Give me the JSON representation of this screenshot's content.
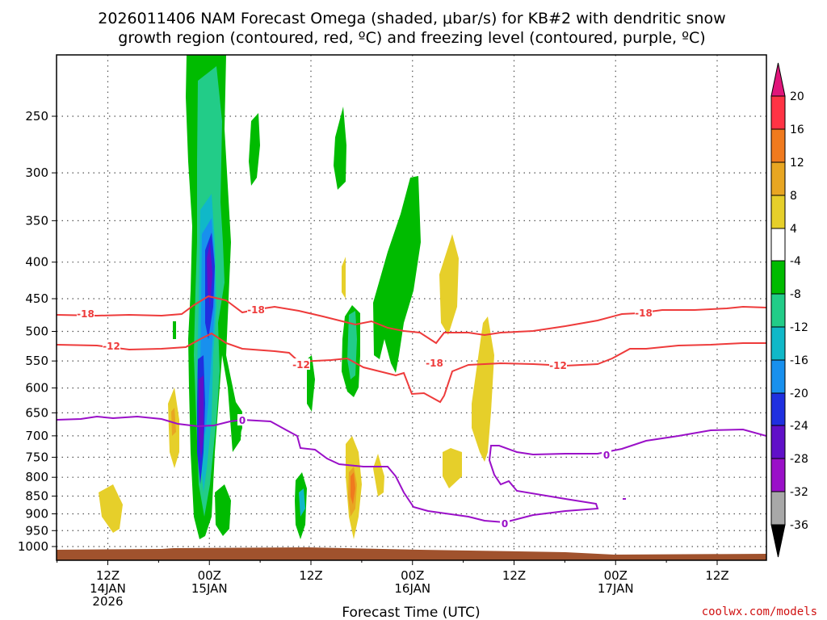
{
  "chart_data": {
    "type": "heatmap",
    "title": "2026011406 NAM Forecast Omega (shaded, μbar/s) for KB#2 with dendritic snow",
    "subtitle": "growth region (contoured, red, ºC) and freezing level (contoured, purple, ºC)",
    "xlabel": "Forecast Time (UTC)",
    "ylabel": "",
    "x_ticks": [
      {
        "t": 12,
        "line1": "12Z",
        "line2": "14JAN",
        "line3": "2026"
      },
      {
        "t": 24,
        "line1": "00Z",
        "line2": "15JAN",
        "line3": ""
      },
      {
        "t": 36,
        "line1": "12Z",
        "line2": "",
        "line3": ""
      },
      {
        "t": 48,
        "line1": "00Z",
        "line2": "16JAN",
        "line3": ""
      },
      {
        "t": 60,
        "line1": "12Z",
        "line2": "",
        "line3": ""
      },
      {
        "t": 72,
        "line1": "00Z",
        "line2": "17JAN",
        "line3": ""
      },
      {
        "t": 84,
        "line1": "12Z",
        "line2": "",
        "line3": ""
      }
    ],
    "y_ticks": [
      "250",
      "300",
      "350",
      "400",
      "450",
      "500",
      "550",
      "600",
      "650",
      "700",
      "750",
      "800",
      "850",
      "900",
      "950",
      "1000"
    ],
    "y_scale": "log-pressure (inverted)",
    "grid": true,
    "colorbar": {
      "unit": "μbar/s",
      "labels": [
        "20",
        "16",
        "12",
        "8",
        "4",
        "-4",
        "-8",
        "-12",
        "-16",
        "-20",
        "-24",
        "-28",
        "-32",
        "-36"
      ],
      "colors": [
        "#ff3344",
        "#f07a1e",
        "#e8a622",
        "#e6cf2a",
        "#ffffff",
        "#00bb00",
        "#22cc88",
        "#10b8c8",
        "#1890ee",
        "#1f30e0",
        "#6010c8",
        "#9a10c8",
        "#a8a8a8"
      ]
    },
    "contours": [
      {
        "level": "-18",
        "color": "#ee3b3b",
        "label": "-18"
      },
      {
        "level": "-12",
        "color": "#ee3b3b",
        "label": "-12"
      },
      {
        "level": "0",
        "color": "#9a10c8",
        "label": "0"
      }
    ]
  },
  "credit": "coolwx.com/models"
}
